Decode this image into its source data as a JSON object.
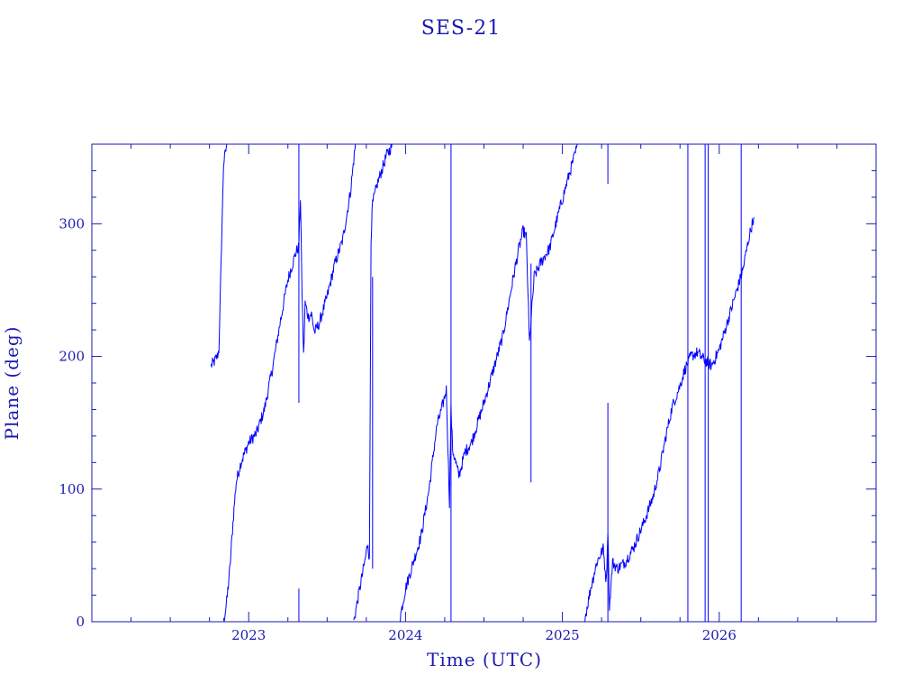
{
  "chart_data": {
    "type": "line",
    "title": "SES-21",
    "xlabel": "Time (UTC)",
    "ylabel": "Plane (deg)",
    "xlim": [
      2022.0,
      2027.0
    ],
    "ylim": [
      0,
      360
    ],
    "x_ticks": [
      {
        "value": 2023,
        "label": "2023"
      },
      {
        "value": 2024,
        "label": "2024"
      },
      {
        "value": 2025,
        "label": "2025"
      },
      {
        "value": 2026,
        "label": "2026"
      }
    ],
    "y_ticks": [
      {
        "value": 0,
        "label": "0"
      },
      {
        "value": 100,
        "label": "100"
      },
      {
        "value": 200,
        "label": "200"
      },
      {
        "value": 300,
        "label": "300"
      }
    ],
    "grid": false,
    "colors": {
      "axes": "#1a1ab0",
      "line": "#0000ff"
    },
    "series": [
      {
        "segments": [
          [
            [
              2022.76,
              193
            ],
            [
              2022.78,
              196
            ],
            [
              2022.8,
              200
            ],
            [
              2022.81,
              205
            ],
            [
              2022.82,
              250
            ],
            [
              2022.83,
              300
            ],
            [
              2022.84,
              345
            ],
            [
              2022.86,
              360
            ]
          ],
          [
            [
              2022.84,
              0
            ],
            [
              2022.86,
              15
            ],
            [
              2022.88,
              40
            ],
            [
              2022.9,
              75
            ],
            [
              2022.92,
              105
            ],
            [
              2022.95,
              120
            ],
            [
              2023.0,
              135
            ],
            [
              2023.05,
              142
            ],
            [
              2023.1,
              160
            ],
            [
              2023.15,
              190
            ],
            [
              2023.2,
              225
            ],
            [
              2023.25,
              258
            ],
            [
              2023.3,
              278
            ],
            [
              2023.32,
              283
            ],
            [
              2023.33,
              320
            ],
            [
              2023.34,
              250
            ],
            [
              2023.35,
              200
            ],
            [
              2023.36,
              240
            ],
            [
              2023.38,
              230
            ],
            [
              2023.4,
              232
            ],
            [
              2023.42,
              218
            ],
            [
              2023.45,
              225
            ],
            [
              2023.5,
              245
            ],
            [
              2023.55,
              270
            ],
            [
              2023.6,
              288
            ],
            [
              2023.65,
              325
            ],
            [
              2023.68,
              360
            ]
          ],
          [
            [
              2023.67,
              0
            ],
            [
              2023.7,
              20
            ],
            [
              2023.74,
              45
            ],
            [
              2023.76,
              60
            ],
            [
              2023.77,
              45
            ],
            [
              2023.78,
              290
            ],
            [
              2023.79,
              315
            ],
            [
              2023.82,
              330
            ],
            [
              2023.88,
              352
            ],
            [
              2023.92,
              360
            ]
          ],
          [
            [
              2023.96,
              0
            ],
            [
              2024.0,
              25
            ],
            [
              2024.05,
              45
            ],
            [
              2024.1,
              65
            ],
            [
              2024.15,
              100
            ],
            [
              2024.2,
              148
            ],
            [
              2024.23,
              160
            ],
            [
              2024.26,
              175
            ],
            [
              2024.28,
              90
            ],
            [
              2024.29,
              160
            ],
            [
              2024.3,
              130
            ],
            [
              2024.34,
              110
            ],
            [
              2024.38,
              128
            ],
            [
              2024.42,
              135
            ],
            [
              2024.5,
              165
            ],
            [
              2024.56,
              190
            ],
            [
              2024.62,
              215
            ],
            [
              2024.68,
              255
            ],
            [
              2024.72,
              280
            ],
            [
              2024.75,
              295
            ],
            [
              2024.77,
              290
            ],
            [
              2024.79,
              210
            ],
            [
              2024.82,
              260
            ],
            [
              2024.86,
              270
            ],
            [
              2024.92,
              282
            ],
            [
              2024.98,
              310
            ],
            [
              2025.05,
              340
            ],
            [
              2025.1,
              360
            ]
          ],
          [
            [
              2025.14,
              0
            ],
            [
              2025.18,
              25
            ],
            [
              2025.22,
              45
            ],
            [
              2025.26,
              55
            ],
            [
              2025.28,
              30
            ],
            [
              2025.29,
              70
            ],
            [
              2025.3,
              10
            ],
            [
              2025.32,
              45
            ],
            [
              2025.35,
              40
            ],
            [
              2025.4,
              45
            ],
            [
              2025.45,
              55
            ],
            [
              2025.52,
              75
            ],
            [
              2025.58,
              95
            ],
            [
              2025.62,
              115
            ],
            [
              2025.66,
              140
            ],
            [
              2025.7,
              162
            ],
            [
              2025.75,
              178
            ],
            [
              2025.78,
              190
            ],
            [
              2025.82,
              200
            ],
            [
              2025.86,
              203
            ],
            [
              2025.9,
              198
            ],
            [
              2025.95,
              193
            ],
            [
              2026.0,
              205
            ],
            [
              2026.05,
              225
            ],
            [
              2026.1,
              245
            ],
            [
              2026.15,
              265
            ],
            [
              2026.19,
              290
            ],
            [
              2026.22,
              305
            ]
          ]
        ],
        "spikes": [
          {
            "x": 2023.32,
            "y0": 165,
            "y1": 360
          },
          {
            "x": 2023.32,
            "y0": 0,
            "y1": 25
          },
          {
            "x": 2023.79,
            "y0": 40,
            "y1": 260
          },
          {
            "x": 2024.29,
            "y0": 0,
            "y1": 360
          },
          {
            "x": 2024.8,
            "y0": 105,
            "y1": 270
          },
          {
            "x": 2025.29,
            "y0": 0,
            "y1": 165
          },
          {
            "x": 2025.29,
            "y0": 330,
            "y1": 360
          },
          {
            "x": 2025.8,
            "y0": 0,
            "y1": 360
          },
          {
            "x": 2025.91,
            "y0": 0,
            "y1": 360
          },
          {
            "x": 2025.93,
            "y0": 0,
            "y1": 360
          },
          {
            "x": 2026.14,
            "y0": 0,
            "y1": 360
          }
        ]
      }
    ]
  }
}
